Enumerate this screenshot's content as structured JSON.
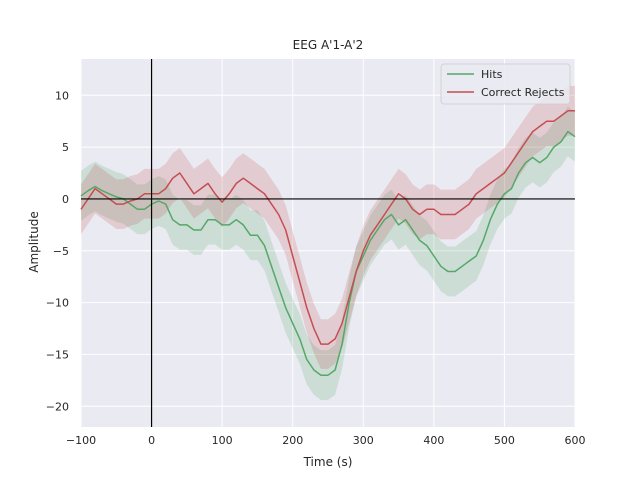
{
  "chart_data": {
    "type": "line",
    "title": "EEG A'1-A'2",
    "xlabel": "Time (s)",
    "ylabel": "Amplitude",
    "xlim": [
      -100,
      600
    ],
    "ylim": [
      -22,
      13.5
    ],
    "xticks": [
      -100,
      0,
      100,
      200,
      300,
      400,
      500,
      600
    ],
    "yticks": [
      -20,
      -15,
      -10,
      -5,
      0,
      5,
      10
    ],
    "grid": true,
    "legend_position": "top-right",
    "reference_lines": {
      "x": 0,
      "y": 0
    },
    "series": [
      {
        "name": "Hits",
        "color": "#55a868",
        "x": [
          -100,
          -90,
          -80,
          -70,
          -60,
          -50,
          -40,
          -30,
          -20,
          -10,
          0,
          10,
          20,
          30,
          40,
          50,
          60,
          70,
          80,
          90,
          100,
          110,
          120,
          130,
          140,
          150,
          160,
          170,
          180,
          190,
          200,
          210,
          220,
          230,
          240,
          250,
          260,
          270,
          280,
          290,
          300,
          310,
          320,
          330,
          340,
          350,
          360,
          370,
          380,
          390,
          400,
          410,
          420,
          430,
          440,
          450,
          460,
          470,
          480,
          490,
          500,
          510,
          520,
          530,
          540,
          550,
          560,
          570,
          580,
          590,
          600
        ],
        "values": [
          0.3,
          0.8,
          1.2,
          0.8,
          0.5,
          0.2,
          0.0,
          -0.5,
          -1.0,
          -1.0,
          -0.5,
          -0.2,
          -0.5,
          -2.0,
          -2.5,
          -2.5,
          -3.0,
          -3.0,
          -2.0,
          -2.0,
          -2.5,
          -2.5,
          -2.0,
          -2.5,
          -3.5,
          -3.5,
          -4.5,
          -6.5,
          -8.5,
          -10.5,
          -12.0,
          -13.5,
          -15.5,
          -16.5,
          -17.0,
          -17.0,
          -16.5,
          -14.0,
          -10.0,
          -7.0,
          -5.5,
          -4.0,
          -3.0,
          -2.0,
          -1.5,
          -2.5,
          -2.0,
          -3.0,
          -4.0,
          -4.5,
          -5.5,
          -6.5,
          -7.0,
          -7.0,
          -6.5,
          -6.0,
          -5.5,
          -4.0,
          -2.0,
          -0.5,
          0.5,
          1.0,
          2.5,
          3.5,
          4.0,
          3.5,
          4.0,
          5.0,
          5.5,
          6.5,
          6.0
        ]
      },
      {
        "name": "Correct Rejects",
        "color": "#c44e52",
        "x": [
          -100,
          -90,
          -80,
          -70,
          -60,
          -50,
          -40,
          -30,
          -20,
          -10,
          0,
          10,
          20,
          30,
          40,
          50,
          60,
          70,
          80,
          90,
          100,
          110,
          120,
          130,
          140,
          150,
          160,
          170,
          180,
          190,
          200,
          210,
          220,
          230,
          240,
          250,
          260,
          270,
          280,
          290,
          300,
          310,
          320,
          330,
          340,
          350,
          360,
          370,
          380,
          390,
          400,
          410,
          420,
          430,
          440,
          450,
          460,
          470,
          480,
          490,
          500,
          510,
          520,
          530,
          540,
          550,
          560,
          570,
          580,
          590,
          600
        ],
        "values": [
          -1.0,
          0.0,
          1.0,
          0.5,
          0.0,
          -0.5,
          -0.5,
          -0.2,
          0.0,
          0.5,
          0.5,
          0.5,
          1.0,
          2.0,
          2.5,
          1.5,
          0.5,
          1.0,
          1.5,
          0.5,
          -0.3,
          0.5,
          1.5,
          2.0,
          1.5,
          1.0,
          0.5,
          -0.5,
          -1.5,
          -3.0,
          -5.5,
          -8.0,
          -10.5,
          -12.5,
          -14.0,
          -14.0,
          -13.5,
          -12.0,
          -9.5,
          -7.0,
          -5.0,
          -3.5,
          -2.5,
          -1.5,
          -0.5,
          0.5,
          0.0,
          -1.0,
          -1.5,
          -1.0,
          -1.0,
          -1.5,
          -1.5,
          -1.5,
          -1.0,
          -0.5,
          0.5,
          1.0,
          1.5,
          2.0,
          2.5,
          3.5,
          4.5,
          5.5,
          6.5,
          7.0,
          7.5,
          7.5,
          8.0,
          8.5,
          8.5
        ]
      }
    ]
  }
}
